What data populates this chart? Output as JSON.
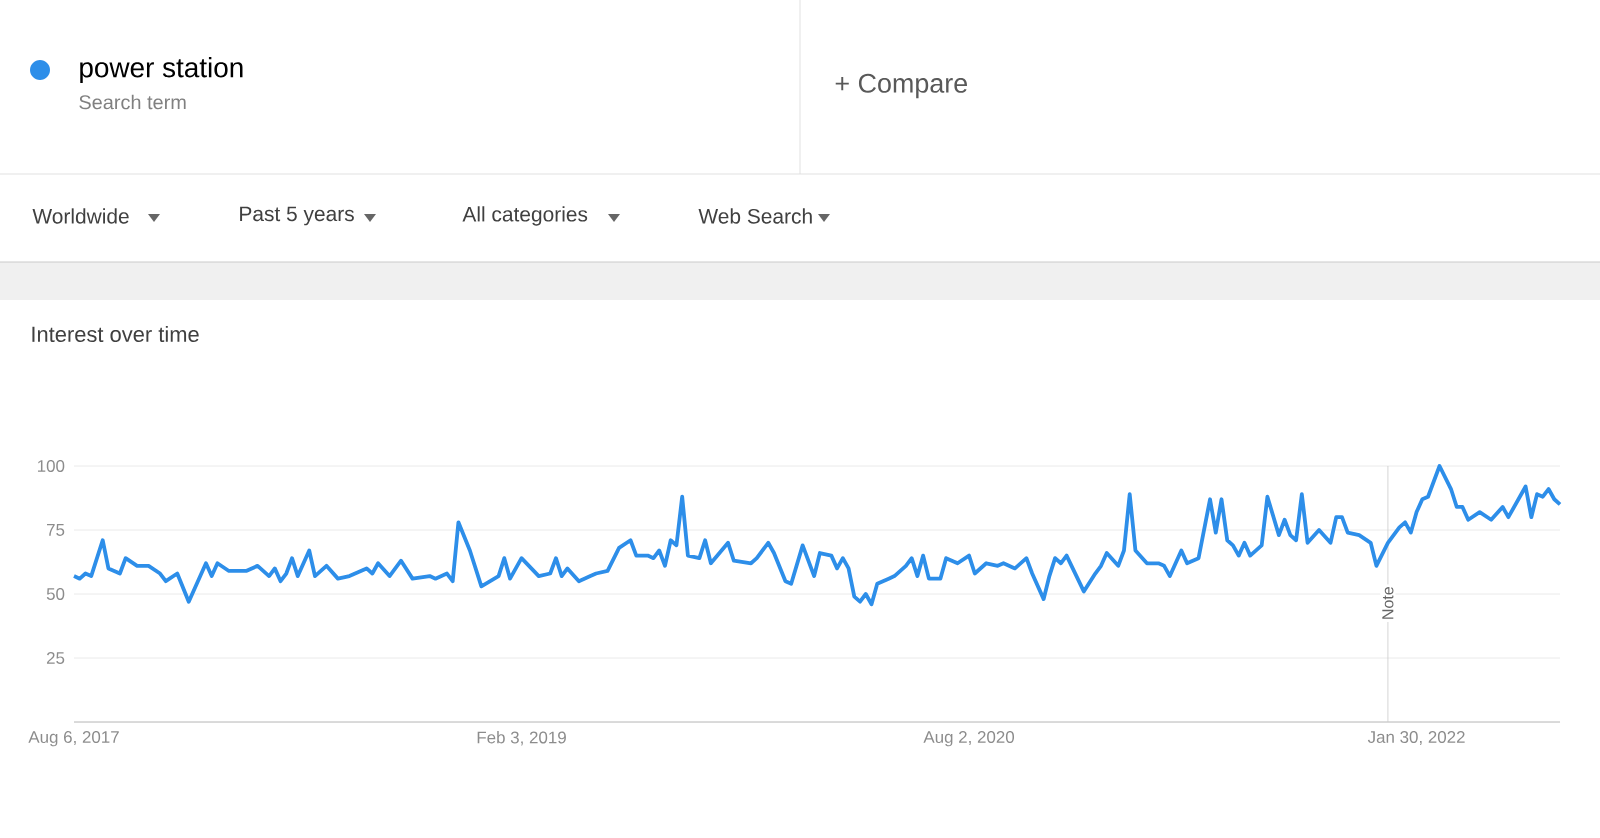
{
  "chart_data": {
    "type": "line",
    "title": "Interest over time",
    "annotations": [
      "Search term",
      "+ Compare",
      "Worldwide",
      "Past 5 years",
      "All categories",
      "Web Search"
    ],
    "x": [
      "2017-08-06",
      "2017-08-13",
      "2017-08-20",
      "2017-08-27",
      "2017-09-10",
      "2017-09-17",
      "2017-10-01",
      "2017-10-08",
      "2017-10-22",
      "2017-11-05",
      "2017-11-19",
      "2017-11-26",
      "2017-12-10",
      "2017-12-24",
      "2018-01-14",
      "2018-01-21",
      "2018-01-28",
      "2018-02-11",
      "2018-03-04",
      "2018-03-18",
      "2018-04-01",
      "2018-04-08",
      "2018-04-15",
      "2018-04-22",
      "2018-04-29",
      "2018-05-06",
      "2018-05-20",
      "2018-05-27",
      "2018-06-10",
      "2018-06-24",
      "2018-07-08",
      "2018-07-29",
      "2018-08-05",
      "2018-08-12",
      "2018-08-26",
      "2018-09-09",
      "2018-09-23",
      "2018-10-14",
      "2018-10-21",
      "2018-11-04",
      "2018-11-11",
      "2018-11-18",
      "2018-12-02",
      "2018-12-16",
      "2019-01-06",
      "2019-01-13",
      "2019-01-20",
      "2019-02-03",
      "2019-02-24",
      "2019-03-10",
      "2019-03-17",
      "2019-03-24",
      "2019-03-31",
      "2019-04-14",
      "2019-04-28",
      "2019-05-05",
      "2019-05-19",
      "2019-06-02",
      "2019-06-16",
      "2019-06-23",
      "2019-07-07",
      "2019-07-14",
      "2019-07-21",
      "2019-07-28",
      "2019-08-04",
      "2019-08-11",
      "2019-08-18",
      "2019-08-25",
      "2019-09-08",
      "2019-09-15",
      "2019-09-22",
      "2019-10-13",
      "2019-10-20",
      "2019-11-10",
      "2019-11-17",
      "2019-12-01",
      "2019-12-08",
      "2019-12-22",
      "2019-12-29",
      "2020-01-12",
      "2020-01-26",
      "2020-02-02",
      "2020-02-16",
      "2020-02-23",
      "2020-03-01",
      "2020-03-08",
      "2020-03-15",
      "2020-03-22",
      "2020-03-29",
      "2020-04-05",
      "2020-04-12",
      "2020-04-26",
      "2020-05-03",
      "2020-05-17",
      "2020-05-24",
      "2020-05-31",
      "2020-06-07",
      "2020-06-14",
      "2020-06-28",
      "2020-07-05",
      "2020-07-19",
      "2020-08-02",
      "2020-08-09",
      "2020-08-23",
      "2020-09-06",
      "2020-09-13",
      "2020-09-27",
      "2020-10-11",
      "2020-10-18",
      "2020-11-01",
      "2020-11-08",
      "2020-11-15",
      "2020-11-22",
      "2020-11-29",
      "2020-12-20",
      "2021-01-03",
      "2021-01-10",
      "2021-01-17",
      "2021-01-31",
      "2021-02-07",
      "2021-02-14",
      "2021-02-21",
      "2021-03-07",
      "2021-03-21",
      "2021-03-28",
      "2021-04-04",
      "2021-04-18",
      "2021-04-25",
      "2021-05-09",
      "2021-05-23",
      "2021-05-30",
      "2021-06-06",
      "2021-06-13",
      "2021-06-20",
      "2021-06-27",
      "2021-07-04",
      "2021-07-11",
      "2021-07-25",
      "2021-08-01",
      "2021-08-15",
      "2021-08-22",
      "2021-08-29",
      "2021-09-05",
      "2021-09-12",
      "2021-09-19",
      "2021-10-03",
      "2021-10-17",
      "2021-10-24",
      "2021-10-31",
      "2021-11-07",
      "2021-11-21",
      "2021-12-05",
      "2021-12-12",
      "2021-12-26",
      "2022-01-09",
      "2022-01-16",
      "2022-01-23",
      "2022-01-30",
      "2022-02-06",
      "2022-02-13",
      "2022-02-27",
      "2022-03-13",
      "2022-03-20",
      "2022-03-27",
      "2022-04-03",
      "2022-04-17",
      "2022-05-01",
      "2022-05-15",
      "2022-05-22",
      "2022-06-12",
      "2022-06-19",
      "2022-06-26",
      "2022-07-03",
      "2022-07-10",
      "2022-07-17",
      "2022-07-24"
    ],
    "series": [
      {
        "name": "power station",
        "color": "#2d8ee9",
        "values": [
          57,
          56,
          58,
          57,
          71,
          60,
          58,
          64,
          61,
          61,
          58,
          55,
          58,
          47,
          62,
          57,
          62,
          59,
          59,
          61,
          57,
          60,
          55,
          58,
          64,
          57,
          67,
          57,
          61,
          56,
          57,
          60,
          58,
          62,
          57,
          63,
          56,
          57,
          56,
          58,
          55,
          78,
          67,
          53,
          57,
          64,
          56,
          64,
          57,
          58,
          64,
          57,
          60,
          55,
          57,
          58,
          59,
          68,
          71,
          65,
          65,
          64,
          67,
          61,
          71,
          69,
          88,
          65,
          64,
          71,
          62,
          70,
          63,
          62,
          64,
          70,
          66,
          55,
          54,
          69,
          57,
          66,
          65,
          60,
          64,
          60,
          49,
          47,
          50,
          46,
          54,
          56,
          57,
          61,
          64,
          57,
          65,
          56,
          56,
          64,
          62,
          65,
          58,
          62,
          61,
          62,
          60,
          64,
          58,
          48,
          57,
          64,
          62,
          65,
          51,
          58,
          61,
          66,
          61,
          67,
          89,
          67,
          62,
          62,
          61,
          57,
          67,
          62,
          64,
          87,
          74,
          87,
          71,
          69,
          65,
          70,
          65,
          69,
          88,
          73,
          79,
          73,
          71,
          89,
          70,
          75,
          70,
          80,
          80,
          74,
          73,
          70,
          61,
          70,
          76,
          78,
          74,
          82,
          87,
          88,
          100,
          91,
          84,
          84,
          79,
          82,
          79,
          84,
          80,
          92,
          80,
          89,
          88,
          91,
          87,
          85
        ]
      }
    ],
    "xlim": [
      "2017-08-06",
      "2022-07-24"
    ],
    "xticks": [
      {
        "value": "2017-08-06",
        "label": "Aug 6, 2017"
      },
      {
        "value": "2019-02-03",
        "label": "Feb 3, 2019"
      },
      {
        "value": "2020-08-02",
        "label": "Aug 2, 2020"
      },
      {
        "value": "2022-01-30",
        "label": "Jan 30, 2022"
      }
    ],
    "ylim": [
      0,
      100
    ],
    "yticks": [
      {
        "value": 0,
        "label": null
      },
      25,
      50,
      75,
      100
    ],
    "ref_lines": [
      {
        "axis": "x",
        "value": "2021-12-26",
        "label": "Note",
        "color": "#cccccc"
      }
    ],
    "grid": "y",
    "legend": "top left",
    "marker": "none",
    "line_style": "solid"
  }
}
